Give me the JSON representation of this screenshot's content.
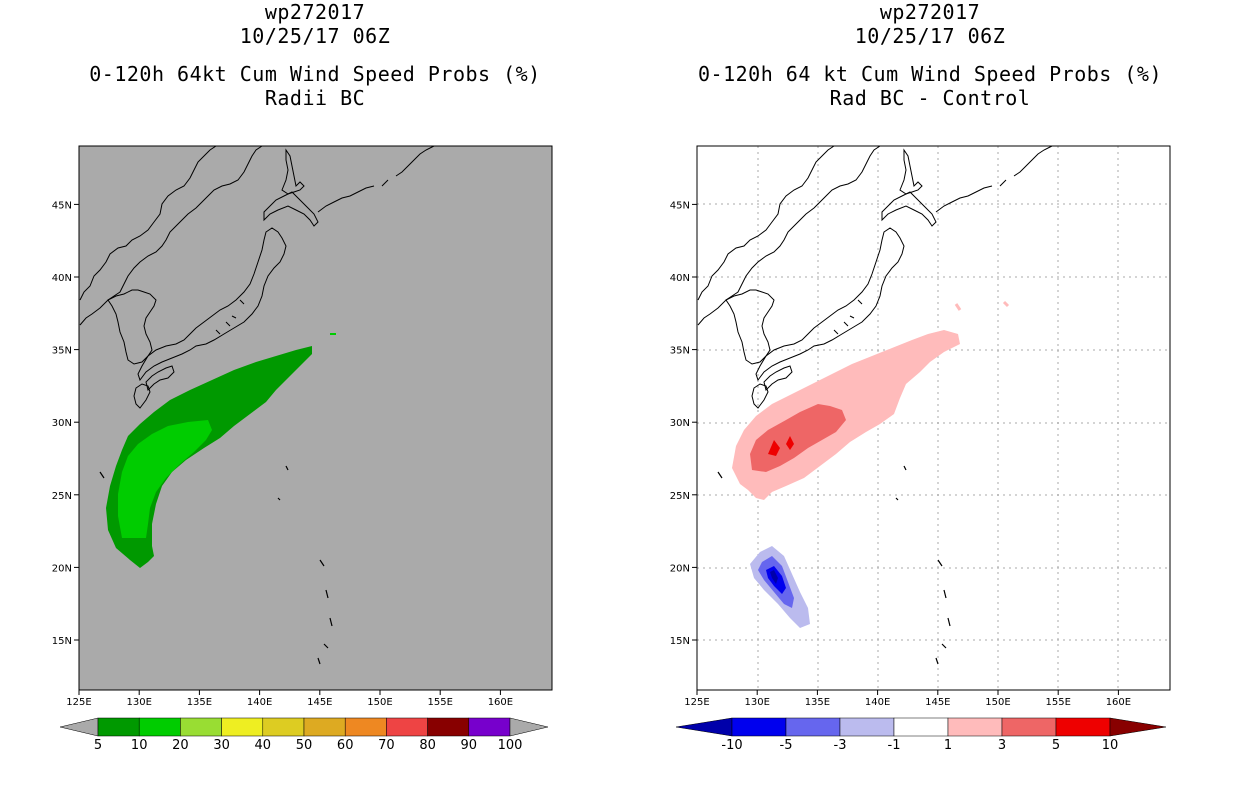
{
  "left_panel": {
    "title_line1": "wp272017",
    "title_line2": "10/25/17 06Z",
    "title_line3": "0-120h 64kt Cum Wind Speed Probs (%)",
    "title_line4": "Radii BC",
    "colorbar": {
      "labels": [
        "5",
        "10",
        "20",
        "30",
        "40",
        "50",
        "60",
        "70",
        "80",
        "90",
        "100"
      ],
      "colors": [
        "#009900",
        "#00cc00",
        "#99dd33",
        "#eeee22",
        "#ddcc22",
        "#ddaa22",
        "#ee8822",
        "#ee4444",
        "#880000",
        "#7700cc"
      ],
      "end_color": "#aaaaaa"
    },
    "background_color": "#aaaaaa"
  },
  "right_panel": {
    "title_line1": "wp272017",
    "title_line2": "10/25/17 06Z",
    "title_line3": "0-120h 64 kt Cum Wind Speed Probs (%)",
    "title_line4": "Rad BC - Control",
    "colorbar": {
      "labels": [
        "-10",
        "-5",
        "-3",
        "-1",
        "1",
        "3",
        "5",
        "10"
      ],
      "colors": [
        "#0000aa",
        "#0000ee",
        "#6666ee",
        "#bbbbee",
        "#ffffff",
        "#ffbbbb",
        "#ee6666",
        "#ee0000",
        "#880000"
      ]
    },
    "background_color": "#ffffff"
  },
  "axes": {
    "lon_labels": [
      "125E",
      "130E",
      "135E",
      "140E",
      "145E",
      "150E",
      "155E",
      "160E"
    ],
    "lat_labels": [
      "15N",
      "20N",
      "25N",
      "30N",
      "35N",
      "40N",
      "45N"
    ]
  }
}
